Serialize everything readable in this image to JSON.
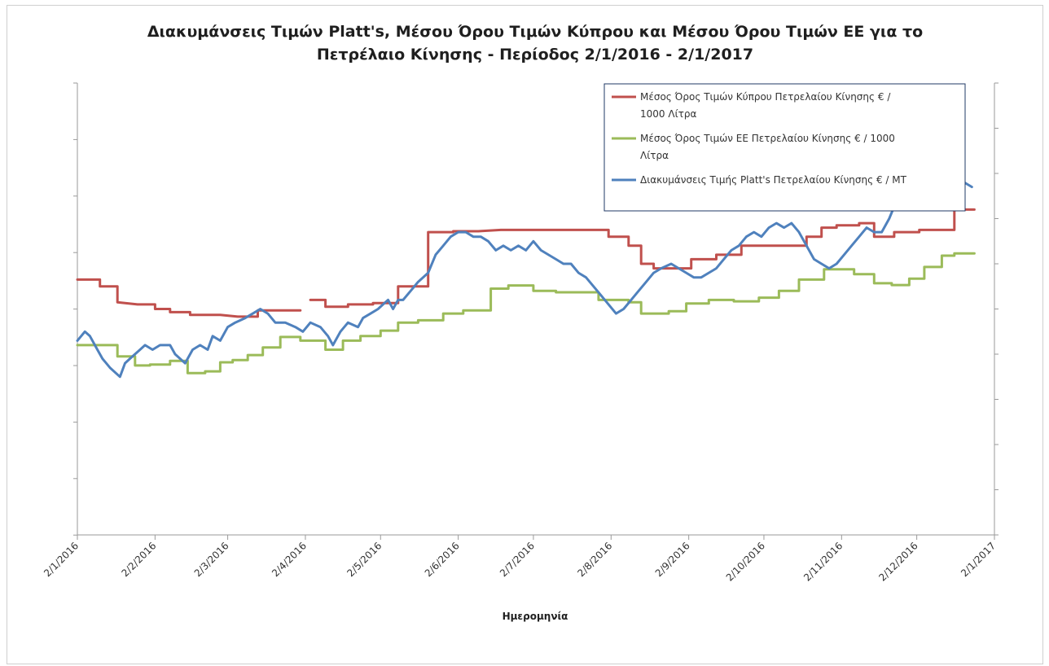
{
  "chart_data": {
    "type": "line",
    "title_lines": [
      "Διακυμάνσεις Τιμών Platt's, Μέσου Όρου Τιμών Κύπρου και Μέσου Όρου Τιμών ΕΕ για το",
      "Πετρέλαιο Κίνησης - Περίοδος  2/1/2016 - 2/1/2017"
    ],
    "xlabel": "Ημερομηνία",
    "x_tick_labels": [
      "2/1/2016",
      "2/2/2016",
      "2/3/2016",
      "2/4/2016",
      "2/5/2016",
      "2/6/2016",
      "2/7/2016",
      "2/8/2016",
      "2/9/2016",
      "2/10/2016",
      "2/11/2016",
      "2/12/2016",
      "2/1/2017"
    ],
    "xlim_days": [
      0,
      366
    ],
    "y_tick_labels_shown": false,
    "grid": false,
    "legend_position": "top-right",
    "legend_lines": [
      [
        "Μέσος Όρος Τιμών Κύπρου Πετρελαίου Κίνησης  € /",
        "1000 Λίτρα"
      ],
      [
        "Μέσος Όρος Τιμών ΕΕ Πετρελαίου Κίνησης  € / 1000",
        "Λίτρα"
      ],
      [
        "Διακυμάνσεις Τιμής Platt's Πετρελαίου Κίνησης € / ΜΤ"
      ]
    ],
    "series": [
      {
        "name": "Μέσος Όρος Τιμών Κύπρου Πετρελαίου Κίνησης  € / 1000 Λίτρα",
        "color": "#c0504d",
        "x": [
          0,
          9,
          9,
          16,
          16,
          16,
          24,
          31,
          31,
          37,
          37,
          45,
          45,
          52,
          57,
          57,
          64,
          64,
          72,
          72,
          81,
          89,
          89,
          93,
          93,
          99,
          99,
          108,
          108,
          118,
          118,
          128,
          128,
          140,
          140,
          150,
          150,
          160,
          169,
          169,
          178,
          185,
          185,
          203,
          212,
          212,
          220,
          220,
          225,
          225,
          230,
          230,
          245,
          245,
          255,
          255,
          265,
          265,
          280,
          291,
          291,
          297,
          297,
          303,
          303,
          312,
          312,
          318,
          318,
          326,
          326,
          336,
          336,
          342,
          342,
          350,
          350,
          358
        ],
        "y": [
          0.565,
          0.565,
          0.55,
          0.55,
          0.515,
          0.515,
          0.51,
          0.51,
          0.5,
          0.5,
          0.493,
          0.493,
          0.487,
          0.487,
          0.487,
          0.487,
          0.483,
          0.483,
          0.483,
          0.497,
          0.497,
          0.497,
          null,
          null,
          0.52,
          0.52,
          0.505,
          0.505,
          0.51,
          0.51,
          0.513,
          0.513,
          0.55,
          0.55,
          0.67,
          0.67,
          0.672,
          0.672,
          0.675,
          0.675,
          0.675,
          0.675,
          0.675,
          0.675,
          0.675,
          0.66,
          0.66,
          0.64,
          0.64,
          0.6,
          0.6,
          0.59,
          0.59,
          0.61,
          0.61,
          0.62,
          0.62,
          0.64,
          0.64,
          0.64,
          0.66,
          0.66,
          0.68,
          0.68,
          0.685,
          0.685,
          0.69,
          0.69,
          0.66,
          0.66,
          0.67,
          0.67,
          0.675,
          0.675,
          0.675,
          0.675,
          0.72,
          0.72
        ]
      },
      {
        "name": "Μέσος Όρος Τιμών ΕΕ Πετρελαίου Κίνησης  € / 1000 Λίτρα",
        "color": "#9bbb59",
        "x": [
          0,
          16,
          16,
          23,
          23,
          29,
          29,
          37,
          37,
          44,
          44,
          51,
          51,
          57,
          57,
          62,
          62,
          68,
          68,
          74,
          74,
          81,
          81,
          89,
          89,
          99,
          99,
          106,
          106,
          113,
          113,
          121,
          121,
          128,
          128,
          136,
          136,
          146,
          146,
          154,
          154,
          165,
          165,
          172,
          172,
          182,
          182,
          191,
          191,
          208,
          208,
          220,
          220,
          225,
          225,
          236,
          236,
          243,
          243,
          252,
          252,
          262,
          262,
          272,
          272,
          280,
          280,
          288,
          288,
          298,
          298,
          310,
          310,
          318,
          318,
          325,
          325,
          332,
          332,
          338,
          338,
          345,
          345,
          350,
          350,
          358
        ],
        "y": [
          0.42,
          0.42,
          0.395,
          0.395,
          0.375,
          0.375,
          0.377,
          0.377,
          0.385,
          0.385,
          0.358,
          0.358,
          0.362,
          0.362,
          0.382,
          0.382,
          0.387,
          0.387,
          0.398,
          0.398,
          0.415,
          0.415,
          0.438,
          0.438,
          0.43,
          0.43,
          0.41,
          0.41,
          0.43,
          0.43,
          0.44,
          0.44,
          0.452,
          0.452,
          0.47,
          0.47,
          0.475,
          0.475,
          0.49,
          0.49,
          0.497,
          0.497,
          0.545,
          0.545,
          0.552,
          0.552,
          0.54,
          0.54,
          0.537,
          0.537,
          0.52,
          0.52,
          0.515,
          0.515,
          0.49,
          0.49,
          0.495,
          0.495,
          0.512,
          0.512,
          0.52,
          0.52,
          0.517,
          0.517,
          0.525,
          0.525,
          0.54,
          0.54,
          0.565,
          0.565,
          0.588,
          0.588,
          0.577,
          0.577,
          0.557,
          0.557,
          0.553,
          0.553,
          0.567,
          0.567,
          0.593,
          0.593,
          0.618,
          0.618,
          0.623,
          0.623
        ]
      },
      {
        "name": "Διακυμάνσεις Τιμής Platt's Πετρελαίου Κίνησης € / ΜΤ",
        "color": "#4f81bd",
        "x": [
          0,
          3,
          5,
          8,
          10,
          13,
          17,
          19,
          21,
          25,
          27,
          30,
          33,
          37,
          39,
          43,
          46,
          49,
          52,
          54,
          57,
          60,
          63,
          67,
          70,
          73,
          76,
          79,
          83,
          87,
          90,
          93,
          97,
          100,
          102,
          105,
          108,
          112,
          114,
          117,
          120,
          122,
          124,
          126,
          128,
          130,
          133,
          136,
          140,
          143,
          146,
          149,
          152,
          155,
          158,
          161,
          164,
          167,
          170,
          173,
          176,
          179,
          182,
          185,
          188,
          191,
          194,
          197,
          200,
          203,
          206,
          209,
          212,
          215,
          218,
          221,
          224,
          227,
          230,
          233,
          237,
          240,
          243,
          246,
          249,
          252,
          255,
          258,
          261,
          264,
          267,
          270,
          273,
          276,
          279,
          282,
          285,
          288,
          291,
          294,
          297,
          300,
          303,
          306,
          309,
          312,
          315,
          318,
          321,
          324,
          327,
          330,
          333,
          336,
          339,
          342,
          345,
          348,
          351,
          354,
          357
        ],
        "y": [
          0.43,
          0.45,
          0.44,
          0.41,
          0.39,
          0.37,
          0.35,
          0.38,
          0.39,
          0.41,
          0.42,
          0.41,
          0.42,
          0.42,
          0.4,
          0.38,
          0.41,
          0.42,
          0.41,
          0.44,
          0.43,
          0.46,
          0.47,
          0.48,
          0.49,
          0.5,
          0.49,
          0.47,
          0.47,
          0.46,
          0.45,
          0.47,
          0.46,
          0.44,
          0.42,
          0.45,
          0.47,
          0.46,
          0.48,
          0.49,
          0.5,
          0.51,
          0.52,
          0.5,
          0.52,
          0.52,
          0.54,
          0.56,
          0.58,
          0.62,
          0.64,
          0.66,
          0.67,
          0.67,
          0.66,
          0.66,
          0.65,
          0.63,
          0.64,
          0.63,
          0.64,
          0.63,
          0.65,
          0.63,
          0.62,
          0.61,
          0.6,
          0.6,
          0.58,
          0.57,
          0.55,
          0.53,
          0.51,
          0.49,
          0.5,
          0.52,
          0.54,
          0.56,
          0.58,
          0.59,
          0.6,
          0.59,
          0.58,
          0.57,
          0.57,
          0.58,
          0.59,
          0.61,
          0.63,
          0.64,
          0.66,
          0.67,
          0.66,
          0.68,
          0.69,
          0.68,
          0.69,
          0.67,
          0.64,
          0.61,
          0.6,
          0.59,
          0.6,
          0.62,
          0.64,
          0.66,
          0.68,
          0.67,
          0.67,
          0.7,
          0.74,
          0.74,
          0.75,
          0.77,
          0.78,
          0.78,
          0.77,
          0.76,
          0.77,
          0.78,
          0.77
        ]
      }
    ]
  }
}
